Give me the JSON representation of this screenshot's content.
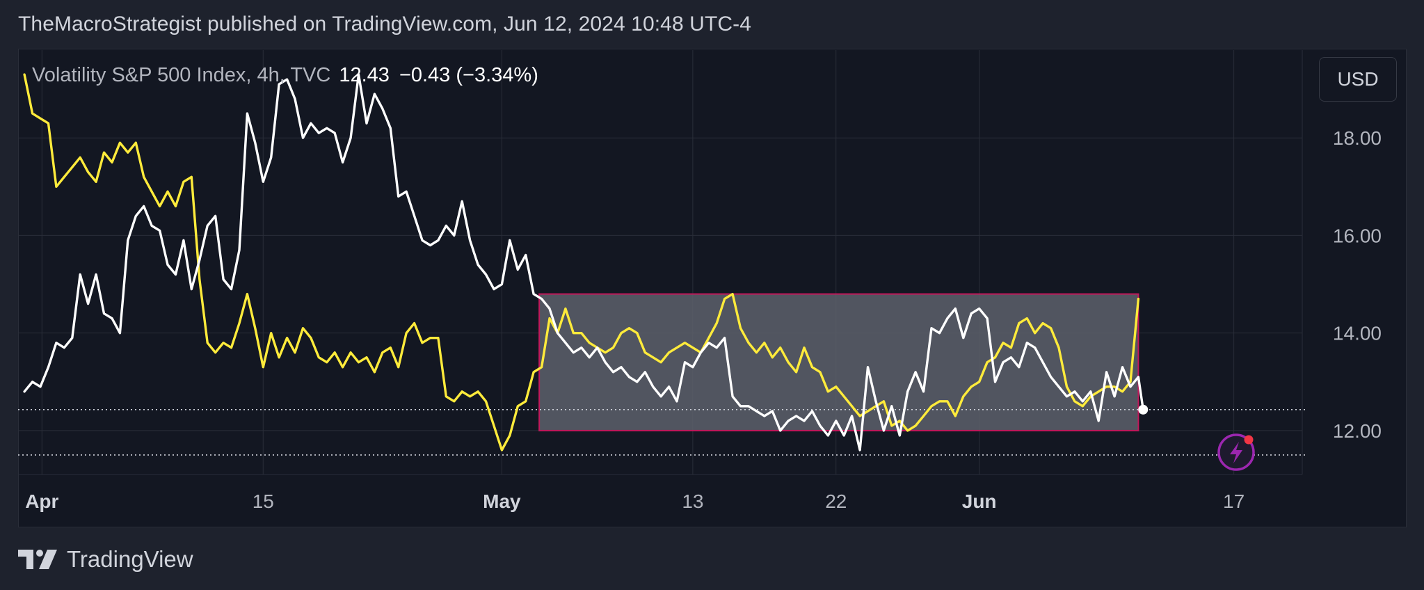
{
  "publisher_line": "TheMacroStrategist published on TradingView.com, Jun 12, 2024 10:48 UTC-4",
  "legend": {
    "symbol": "Volatility S&P 500 Index, 4h, TVC",
    "price": "12.43",
    "change": "−0.43 (−3.34%)"
  },
  "currency_label": "USD",
  "footer_brand": "TradingView",
  "colors": {
    "background": "#131722",
    "grid": "#2a2e39",
    "series_vix": "#ffffff",
    "series_overlay": "#ffeb3b",
    "box_border": "#c2185b",
    "box_fill": "#5d606b",
    "axis_text": "#b2b5be"
  },
  "chart_data": {
    "type": "line",
    "title": "Volatility S&P 500 Index, 4h, TVC",
    "ylim": [
      11.1,
      19.8
    ],
    "y_ticks": [
      "18.00",
      "16.00",
      "14.00",
      "12.00"
    ],
    "x_ticks": [
      {
        "label": "Apr",
        "x": 1.1,
        "bold": true
      },
      {
        "label": "15",
        "x": 15,
        "bold": false
      },
      {
        "label": "May",
        "x": 30,
        "bold": true
      },
      {
        "label": "13",
        "x": 42,
        "bold": false
      },
      {
        "label": "22",
        "x": 51,
        "bold": false
      },
      {
        "label": "Jun",
        "x": 60,
        "bold": true
      },
      {
        "label": "17",
        "x": 76,
        "bold": false
      }
    ],
    "xlim": [
      -0.4,
      80.3
    ],
    "current_value": 12.43,
    "reference_lines": [
      12.43,
      11.5
    ],
    "range_box": {
      "x0": 32.35,
      "x1": 70,
      "y0": 12.0,
      "y1": 14.8
    },
    "series": [
      {
        "key": "vix",
        "values": [
          [
            0,
            12.8
          ],
          [
            0.5,
            13.0
          ],
          [
            1,
            12.9
          ],
          [
            1.5,
            13.3
          ],
          [
            2,
            13.8
          ],
          [
            2.5,
            13.7
          ],
          [
            3,
            13.9
          ],
          [
            3.5,
            15.2
          ],
          [
            4,
            14.6
          ],
          [
            4.5,
            15.2
          ],
          [
            5,
            14.4
          ],
          [
            5.5,
            14.3
          ],
          [
            6,
            14.0
          ],
          [
            6.5,
            15.9
          ],
          [
            7,
            16.4
          ],
          [
            7.5,
            16.6
          ],
          [
            8,
            16.2
          ],
          [
            8.5,
            16.1
          ],
          [
            9,
            15.4
          ],
          [
            9.5,
            15.2
          ],
          [
            10,
            15.9
          ],
          [
            10.5,
            14.9
          ],
          [
            11,
            15.5
          ],
          [
            11.5,
            16.2
          ],
          [
            12,
            16.4
          ],
          [
            12.5,
            15.1
          ],
          [
            13,
            14.9
          ],
          [
            13.5,
            15.7
          ],
          [
            14,
            18.5
          ],
          [
            14.5,
            17.9
          ],
          [
            15,
            17.1
          ],
          [
            15.5,
            17.6
          ],
          [
            16,
            19.1
          ],
          [
            16.5,
            19.2
          ],
          [
            17,
            18.8
          ],
          [
            17.5,
            18.0
          ],
          [
            18,
            18.3
          ],
          [
            18.5,
            18.1
          ],
          [
            19,
            18.2
          ],
          [
            19.5,
            18.1
          ],
          [
            20,
            17.5
          ],
          [
            20.5,
            18.0
          ],
          [
            21,
            19.3
          ],
          [
            21.5,
            18.3
          ],
          [
            22,
            18.9
          ],
          [
            22.5,
            18.6
          ],
          [
            23,
            18.2
          ],
          [
            23.5,
            16.8
          ],
          [
            24,
            16.9
          ],
          [
            24.5,
            16.4
          ],
          [
            25,
            15.9
          ],
          [
            25.5,
            15.8
          ],
          [
            26,
            15.9
          ],
          [
            26.5,
            16.2
          ],
          [
            27,
            16.0
          ],
          [
            27.5,
            16.7
          ],
          [
            28,
            15.9
          ],
          [
            28.5,
            15.4
          ],
          [
            29,
            15.2
          ],
          [
            29.5,
            14.9
          ],
          [
            30,
            15.0
          ],
          [
            30.5,
            15.9
          ],
          [
            31,
            15.3
          ],
          [
            31.5,
            15.6
          ],
          [
            32,
            14.8
          ],
          [
            32.5,
            14.7
          ],
          [
            33,
            14.5
          ],
          [
            33.5,
            14.0
          ],
          [
            34,
            13.8
          ],
          [
            34.5,
            13.6
          ],
          [
            35,
            13.7
          ],
          [
            35.5,
            13.5
          ],
          [
            36,
            13.7
          ],
          [
            36.5,
            13.4
          ],
          [
            37,
            13.2
          ],
          [
            37.5,
            13.3
          ],
          [
            38,
            13.1
          ],
          [
            38.5,
            13.0
          ],
          [
            39,
            13.2
          ],
          [
            39.5,
            12.9
          ],
          [
            40,
            12.7
          ],
          [
            40.5,
            12.9
          ],
          [
            41,
            12.6
          ],
          [
            41.5,
            13.4
          ],
          [
            42,
            13.3
          ],
          [
            42.5,
            13.6
          ],
          [
            43,
            13.8
          ],
          [
            43.5,
            13.7
          ],
          [
            44,
            13.9
          ],
          [
            44.5,
            12.7
          ],
          [
            45,
            12.5
          ],
          [
            45.5,
            12.5
          ],
          [
            46,
            12.4
          ],
          [
            46.5,
            12.3
          ],
          [
            47,
            12.4
          ],
          [
            47.5,
            12.0
          ],
          [
            48,
            12.2
          ],
          [
            48.5,
            12.3
          ],
          [
            49,
            12.2
          ],
          [
            49.5,
            12.4
          ],
          [
            50,
            12.1
          ],
          [
            50.5,
            11.9
          ],
          [
            51,
            12.2
          ],
          [
            51.5,
            11.9
          ],
          [
            52,
            12.3
          ],
          [
            52.5,
            11.6
          ],
          [
            53,
            13.3
          ],
          [
            53.5,
            12.6
          ],
          [
            54,
            12.0
          ],
          [
            54.5,
            12.5
          ],
          [
            55,
            11.9
          ],
          [
            55.5,
            12.8
          ],
          [
            56,
            13.2
          ],
          [
            56.5,
            12.8
          ],
          [
            57,
            14.1
          ],
          [
            57.5,
            14.0
          ],
          [
            58,
            14.3
          ],
          [
            58.5,
            14.5
          ],
          [
            59,
            13.9
          ],
          [
            59.5,
            14.4
          ],
          [
            60,
            14.5
          ],
          [
            60.5,
            14.3
          ],
          [
            61,
            13.0
          ],
          [
            61.5,
            13.4
          ],
          [
            62,
            13.5
          ],
          [
            62.5,
            13.3
          ],
          [
            63,
            13.8
          ],
          [
            63.5,
            13.7
          ],
          [
            64,
            13.4
          ],
          [
            64.5,
            13.1
          ],
          [
            65,
            12.9
          ],
          [
            65.5,
            12.7
          ],
          [
            66,
            12.8
          ],
          [
            66.5,
            12.6
          ],
          [
            67,
            12.8
          ],
          [
            67.5,
            12.2
          ],
          [
            68,
            13.2
          ],
          [
            68.5,
            12.7
          ],
          [
            69,
            13.3
          ],
          [
            69.5,
            12.9
          ],
          [
            70,
            13.1
          ],
          [
            70.3,
            12.43
          ]
        ]
      },
      {
        "key": "overlay",
        "values": [
          [
            0,
            19.3
          ],
          [
            0.5,
            18.5
          ],
          [
            1,
            18.4
          ],
          [
            1.5,
            18.3
          ],
          [
            2,
            17.0
          ],
          [
            2.5,
            17.2
          ],
          [
            3,
            17.4
          ],
          [
            3.5,
            17.6
          ],
          [
            4,
            17.3
          ],
          [
            4.5,
            17.1
          ],
          [
            5,
            17.7
          ],
          [
            5.5,
            17.5
          ],
          [
            6,
            17.9
          ],
          [
            6.5,
            17.7
          ],
          [
            7,
            17.9
          ],
          [
            7.5,
            17.2
          ],
          [
            8,
            16.9
          ],
          [
            8.5,
            16.6
          ],
          [
            9,
            16.9
          ],
          [
            9.5,
            16.6
          ],
          [
            10,
            17.1
          ],
          [
            10.5,
            17.2
          ],
          [
            11,
            15.1
          ],
          [
            11.5,
            13.8
          ],
          [
            12,
            13.6
          ],
          [
            12.5,
            13.8
          ],
          [
            13,
            13.7
          ],
          [
            13.5,
            14.2
          ],
          [
            14,
            14.8
          ],
          [
            14.5,
            14.1
          ],
          [
            15,
            13.3
          ],
          [
            15.5,
            14.0
          ],
          [
            16,
            13.5
          ],
          [
            16.5,
            13.9
          ],
          [
            17,
            13.6
          ],
          [
            17.5,
            14.1
          ],
          [
            18,
            13.9
          ],
          [
            18.5,
            13.5
          ],
          [
            19,
            13.4
          ],
          [
            19.5,
            13.6
          ],
          [
            20,
            13.3
          ],
          [
            20.5,
            13.6
          ],
          [
            21,
            13.4
          ],
          [
            21.5,
            13.5
          ],
          [
            22,
            13.2
          ],
          [
            22.5,
            13.6
          ],
          [
            23,
            13.7
          ],
          [
            23.5,
            13.3
          ],
          [
            24,
            14.0
          ],
          [
            24.5,
            14.2
          ],
          [
            25,
            13.8
          ],
          [
            25.5,
            13.9
          ],
          [
            26,
            13.9
          ],
          [
            26.5,
            12.7
          ],
          [
            27,
            12.6
          ],
          [
            27.5,
            12.8
          ],
          [
            28,
            12.7
          ],
          [
            28.5,
            12.8
          ],
          [
            29,
            12.6
          ],
          [
            29.5,
            12.1
          ],
          [
            30,
            11.6
          ],
          [
            30.5,
            11.9
          ],
          [
            31,
            12.5
          ],
          [
            31.5,
            12.6
          ],
          [
            32,
            13.2
          ],
          [
            32.5,
            13.3
          ],
          [
            33,
            14.3
          ],
          [
            33.5,
            14.0
          ],
          [
            34,
            14.5
          ],
          [
            34.5,
            14.0
          ],
          [
            35,
            14.0
          ],
          [
            35.5,
            13.8
          ],
          [
            36,
            13.7
          ],
          [
            36.5,
            13.6
          ],
          [
            37,
            13.7
          ],
          [
            37.5,
            14.0
          ],
          [
            38,
            14.1
          ],
          [
            38.5,
            14.0
          ],
          [
            39,
            13.6
          ],
          [
            39.5,
            13.5
          ],
          [
            40,
            13.4
          ],
          [
            40.5,
            13.6
          ],
          [
            41,
            13.7
          ],
          [
            41.5,
            13.8
          ],
          [
            42,
            13.7
          ],
          [
            42.5,
            13.6
          ],
          [
            43,
            13.9
          ],
          [
            43.5,
            14.2
          ],
          [
            44,
            14.7
          ],
          [
            44.5,
            14.8
          ],
          [
            45,
            14.1
          ],
          [
            45.5,
            13.8
          ],
          [
            46,
            13.6
          ],
          [
            46.5,
            13.8
          ],
          [
            47,
            13.5
          ],
          [
            47.5,
            13.7
          ],
          [
            48,
            13.4
          ],
          [
            48.5,
            13.2
          ],
          [
            49,
            13.7
          ],
          [
            49.5,
            13.3
          ],
          [
            50,
            13.2
          ],
          [
            50.5,
            12.8
          ],
          [
            51,
            12.9
          ],
          [
            51.5,
            12.7
          ],
          [
            52,
            12.5
          ],
          [
            52.5,
            12.3
          ],
          [
            53,
            12.4
          ],
          [
            53.5,
            12.5
          ],
          [
            54,
            12.6
          ],
          [
            54.5,
            12.1
          ],
          [
            55,
            12.2
          ],
          [
            55.5,
            12.0
          ],
          [
            56,
            12.1
          ],
          [
            56.5,
            12.3
          ],
          [
            57,
            12.5
          ],
          [
            57.5,
            12.6
          ],
          [
            58,
            12.6
          ],
          [
            58.5,
            12.3
          ],
          [
            59,
            12.7
          ],
          [
            59.5,
            12.9
          ],
          [
            60,
            13.0
          ],
          [
            60.5,
            13.4
          ],
          [
            61,
            13.5
          ],
          [
            61.5,
            13.8
          ],
          [
            62,
            13.7
          ],
          [
            62.5,
            14.2
          ],
          [
            63,
            14.3
          ],
          [
            63.5,
            14.0
          ],
          [
            64,
            14.2
          ],
          [
            64.5,
            14.1
          ],
          [
            65,
            13.7
          ],
          [
            65.5,
            12.9
          ],
          [
            66,
            12.6
          ],
          [
            66.5,
            12.5
          ],
          [
            67,
            12.7
          ],
          [
            67.5,
            12.8
          ],
          [
            68,
            12.9
          ],
          [
            68.5,
            12.9
          ],
          [
            69,
            12.8
          ],
          [
            69.5,
            13.0
          ],
          [
            70,
            14.7
          ]
        ]
      }
    ]
  }
}
